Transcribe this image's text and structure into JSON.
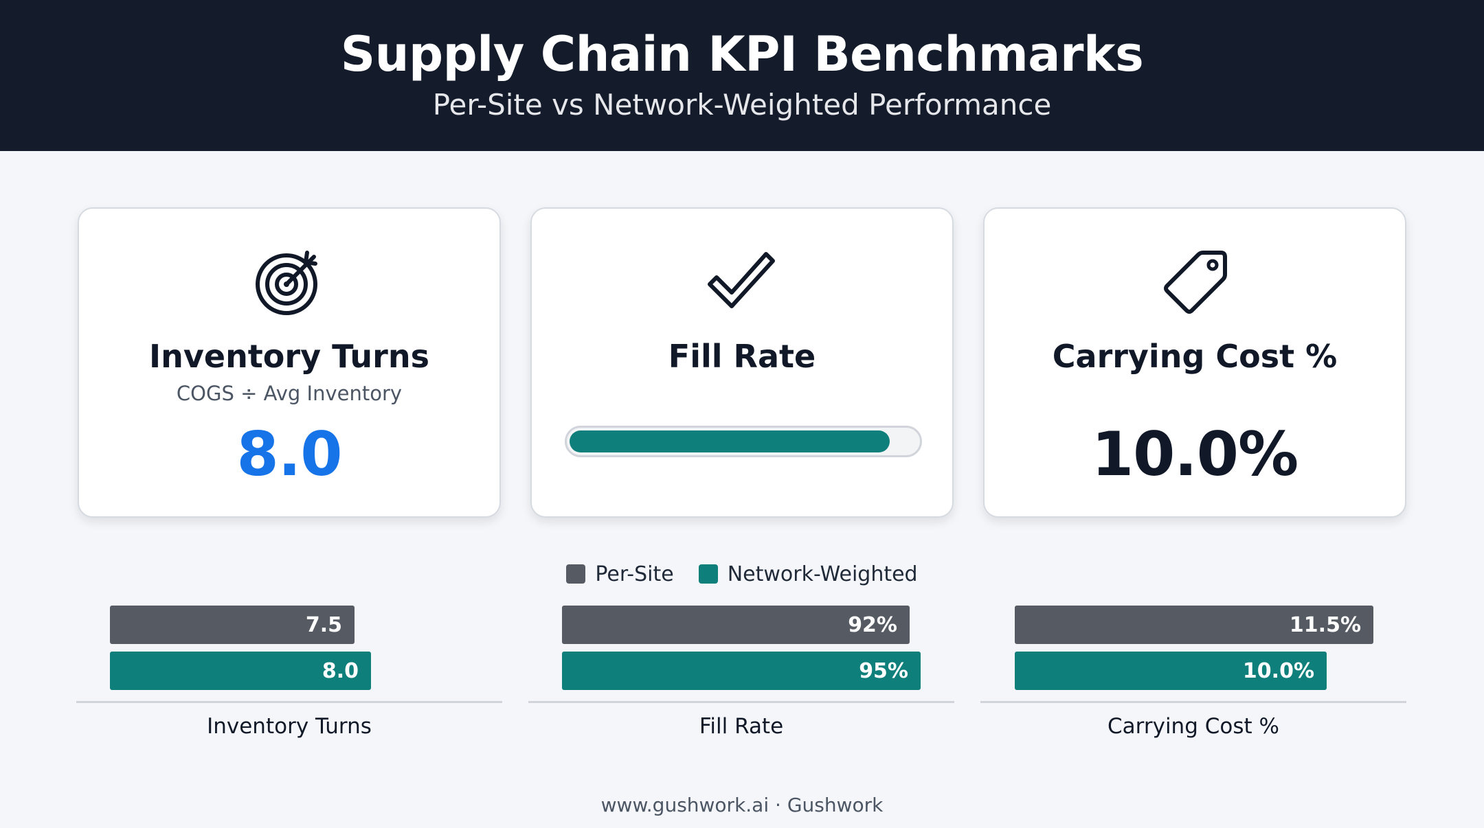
{
  "header": {
    "title": "Supply Chain KPI Benchmarks",
    "subtitle": "Per-Site vs Network-Weighted Performance"
  },
  "cards": [
    {
      "icon": "target-icon",
      "title": "Inventory Turns",
      "subtitle": "COGS ÷ Avg Inventory",
      "value_label": "8.0",
      "value_color": "#1673e8"
    },
    {
      "icon": "checkmark-icon",
      "title": "Fill Rate",
      "progress": 0.95,
      "progress_color": "#0f7f7b"
    },
    {
      "icon": "price-tag-icon",
      "title": "Carrying Cost %",
      "value_label": "10.0%",
      "value_color": "#111827"
    }
  ],
  "colors": {
    "per_site": "#565b63",
    "network_weighted": "#0f7f7b"
  },
  "chart_data": {
    "type": "bar",
    "orientation": "horizontal",
    "legend_position": "top-center",
    "grid": false,
    "categories": [
      "Inventory Turns",
      "Fill Rate",
      "Carrying Cost %"
    ],
    "series": [
      {
        "name": "Per-Site",
        "values": [
          7.5,
          92,
          11.5
        ],
        "labels": [
          "7.5",
          "92%",
          "11.5%"
        ]
      },
      {
        "name": "Network-Weighted",
        "values": [
          8.0,
          95,
          10.0
        ],
        "labels": [
          "8.0",
          "95%",
          "10.0%"
        ]
      }
    ],
    "panel_max": [
      11,
      95,
      11.5
    ]
  },
  "footer": {
    "text": "www.gushwork.ai · Gushwork"
  }
}
